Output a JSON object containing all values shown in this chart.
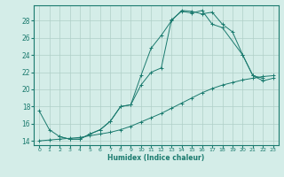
{
  "title": "",
  "xlabel": "Humidex (Indice chaleur)",
  "ylabel": "",
  "background_color": "#d4ede8",
  "line_color": "#1a7a6e",
  "grid_color": "#b0cfc8",
  "xlim": [
    -0.5,
    23.5
  ],
  "ylim": [
    13.5,
    29.8
  ],
  "yticks": [
    14,
    16,
    18,
    20,
    22,
    24,
    26,
    28
  ],
  "xticks": [
    0,
    1,
    2,
    3,
    4,
    5,
    6,
    7,
    8,
    9,
    10,
    11,
    12,
    13,
    14,
    15,
    16,
    17,
    18,
    19,
    20,
    21,
    22,
    23
  ],
  "line1_x": [
    0,
    1,
    2,
    3,
    4,
    5,
    6,
    7,
    8,
    9,
    10,
    11,
    12,
    13,
    14,
    15,
    16,
    17,
    18,
    19,
    20,
    21,
    22
  ],
  "line1_y": [
    17.5,
    15.3,
    14.5,
    14.2,
    14.2,
    14.8,
    15.3,
    16.3,
    18.0,
    18.2,
    21.6,
    24.8,
    26.3,
    28.0,
    29.2,
    29.1,
    28.8,
    29.0,
    27.6,
    26.7,
    24.0,
    21.6,
    21.3
  ],
  "line2_x": [
    2,
    3,
    4,
    5,
    6,
    7,
    8,
    9,
    10,
    11,
    12,
    13,
    14,
    15,
    16,
    17,
    18,
    20,
    21,
    22,
    23
  ],
  "line2_y": [
    14.5,
    14.2,
    14.2,
    14.8,
    15.3,
    16.3,
    18.0,
    18.2,
    20.5,
    22.0,
    22.5,
    28.1,
    29.1,
    28.9,
    29.2,
    27.6,
    27.2,
    24.0,
    21.6,
    21.0,
    21.3
  ],
  "line3_x": [
    0,
    1,
    2,
    3,
    4,
    5,
    6,
    7,
    8,
    9,
    10,
    11,
    12,
    13,
    14,
    15,
    16,
    17,
    18,
    19,
    20,
    21,
    22,
    23
  ],
  "line3_y": [
    14.0,
    14.1,
    14.2,
    14.3,
    14.4,
    14.6,
    14.8,
    15.0,
    15.3,
    15.7,
    16.2,
    16.7,
    17.2,
    17.8,
    18.4,
    19.0,
    19.6,
    20.1,
    20.5,
    20.8,
    21.1,
    21.3,
    21.5,
    21.6
  ]
}
